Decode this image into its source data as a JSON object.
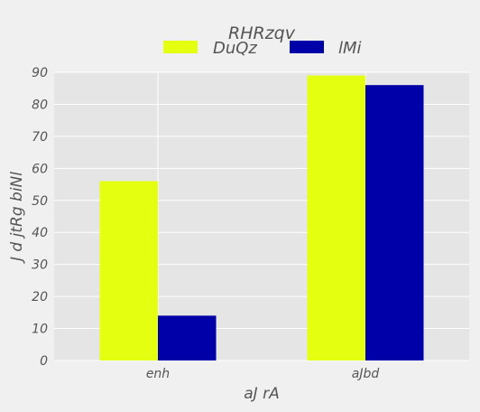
{
  "chart_data": {
    "type": "bar",
    "legend_title": "RHRzqv",
    "legend_position": "top-center",
    "categories": [
      "enh",
      "aJbd"
    ],
    "series": [
      {
        "name": "DuQz",
        "values": [
          56,
          89
        ],
        "color": "#e5ff10"
      },
      {
        "name": "lMi",
        "values": [
          14,
          86
        ],
        "color": "#0000a8"
      }
    ],
    "xlabel": "aJ rA",
    "ylabel": "J d jtRg biNl",
    "ylim": [
      0,
      90
    ],
    "yticks": [
      0,
      10,
      20,
      30,
      40,
      50,
      60,
      70,
      80,
      90
    ],
    "grid": true,
    "plot_background": "#e5e5e5",
    "grid_color": "#ffffff",
    "text_color": "#555555"
  }
}
